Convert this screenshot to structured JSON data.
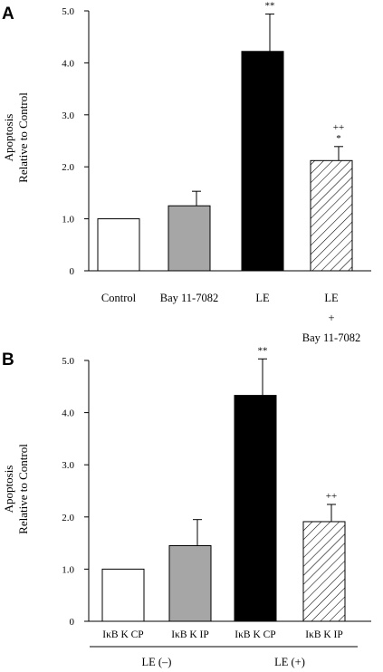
{
  "chart_data": [
    {
      "type": "bar",
      "panel_label": "A",
      "ylabel": "Apoptosis\nRelative to Control",
      "ylim": [
        0,
        5.0
      ],
      "yticks": [
        "0",
        "1.0",
        "2.0",
        "3.0",
        "4.0",
        "5.0"
      ],
      "categories": [
        "Control",
        "Bay 11-7082",
        "LE",
        "LE\n+\nBay 11-7082"
      ],
      "values": [
        1.0,
        1.25,
        4.22,
        2.12
      ],
      "errors": [
        0,
        0.28,
        0.72,
        0.27
      ],
      "significance": [
        "",
        "",
        "**",
        "++\n*"
      ],
      "fills": [
        "white",
        "gray",
        "black",
        "hatched"
      ],
      "groups": []
    },
    {
      "type": "bar",
      "panel_label": "B",
      "ylabel": "Apoptosis\nRelative to Control",
      "ylim": [
        0,
        5.0
      ],
      "yticks": [
        "0",
        "1.0",
        "2.0",
        "3.0",
        "4.0",
        "5.0"
      ],
      "categories": [
        "IκB K CP",
        "IκB K IP",
        "IκB K CP",
        "IκB K IP"
      ],
      "values": [
        1.0,
        1.45,
        4.33,
        1.91
      ],
      "errors": [
        0,
        0.5,
        0.7,
        0.33
      ],
      "significance": [
        "",
        "",
        "**",
        "++"
      ],
      "fills": [
        "white",
        "gray",
        "black",
        "hatched"
      ],
      "groups": [
        {
          "label": "LE (–)",
          "members": [
            0,
            1
          ]
        },
        {
          "label": "LE (+)",
          "members": [
            2,
            3
          ]
        }
      ]
    }
  ],
  "colors": {
    "gray": "#a6a6a6",
    "black": "#000000",
    "white": "#ffffff"
  }
}
